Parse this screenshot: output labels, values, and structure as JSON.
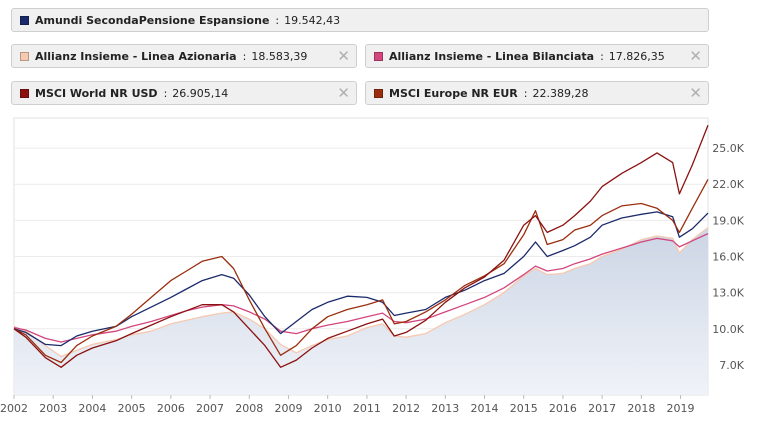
{
  "legend": [
    {
      "name": "Amundi SecondaPensione Espansione",
      "sep": ":",
      "value": "19.542,43",
      "color": "#1b2a6b",
      "removable": false
    },
    {
      "name": "Allianz Insieme - Linea Azionaria",
      "sep": ":",
      "value": "18.583,39",
      "color": "#f6c9b0",
      "removable": true
    },
    {
      "name": "Allianz Insieme - Linea Bilanciata",
      "sep": ":",
      "value": "17.826,35",
      "color": "#d2467e",
      "removable": true
    },
    {
      "name": "MSCI World NR USD",
      "sep": ":",
      "value": "26.905,14",
      "color": "#8b1111",
      "removable": true
    },
    {
      "name": "MSCI Europe NR EUR",
      "sep": ":",
      "value": "22.389,28",
      "color": "#9a2e0e",
      "removable": true
    }
  ],
  "close_glyph": "✕",
  "chart_data": {
    "type": "line",
    "x_ticks": [
      "2002",
      "2003",
      "2004",
      "2005",
      "2006",
      "2007",
      "2008",
      "2009",
      "2010",
      "2011",
      "2012",
      "2013",
      "2014",
      "2015",
      "2016",
      "2017",
      "2018",
      "2019"
    ],
    "y_ticks": [
      "7.0K",
      "10.0K",
      "13.0K",
      "16.0K",
      "19.0K",
      "22.0K",
      "25.0K"
    ],
    "y_tick_values": [
      7000,
      10000,
      13000,
      16000,
      19000,
      22000,
      25000
    ],
    "xlim": [
      2002.0,
      2019.7
    ],
    "ylim": [
      4500,
      27500
    ],
    "series": [
      {
        "name": "Allianz Insieme - Linea Azionaria",
        "color": "#f6c9b0",
        "area": true,
        "x": [
          2002.0,
          2002.3,
          2002.8,
          2003.2,
          2003.6,
          2004.0,
          2004.6,
          2005.0,
          2005.5,
          2006.0,
          2006.4,
          2006.8,
          2007.3,
          2007.6,
          2008.0,
          2008.4,
          2008.8,
          2009.2,
          2009.6,
          2010.0,
          2010.5,
          2011.0,
          2011.4,
          2011.7,
          2012.0,
          2012.5,
          2013.0,
          2013.5,
          2014.0,
          2014.5,
          2015.0,
          2015.3,
          2015.6,
          2016.0,
          2016.3,
          2016.7,
          2017.0,
          2017.5,
          2018.0,
          2018.4,
          2018.8,
          2018.97,
          2019.3,
          2019.7
        ],
        "y": [
          10200,
          9800,
          8600,
          7700,
          8200,
          8700,
          9100,
          9500,
          9800,
          10400,
          10700,
          11000,
          11300,
          11400,
          10800,
          10000,
          8700,
          8000,
          8600,
          9100,
          9400,
          10100,
          10400,
          9400,
          9300,
          9600,
          10500,
          11200,
          12000,
          13000,
          14400,
          15000,
          14500,
          14600,
          15000,
          15400,
          16000,
          16600,
          17400,
          17700,
          17500,
          16300,
          17400,
          18400
        ]
      },
      {
        "name": "Allianz Insieme - Linea Bilanciata",
        "color": "#d2467e",
        "area": false,
        "x": [
          2002.0,
          2002.3,
          2002.8,
          2003.2,
          2003.6,
          2004.0,
          2004.6,
          2005.0,
          2005.5,
          2006.0,
          2006.4,
          2006.8,
          2007.3,
          2007.6,
          2008.0,
          2008.4,
          2008.8,
          2009.2,
          2009.6,
          2010.0,
          2010.5,
          2011.0,
          2011.4,
          2011.7,
          2012.0,
          2012.5,
          2013.0,
          2013.5,
          2014.0,
          2014.5,
          2015.0,
          2015.3,
          2015.6,
          2016.0,
          2016.3,
          2016.7,
          2017.0,
          2017.5,
          2018.0,
          2018.4,
          2018.8,
          2018.97,
          2019.3,
          2019.7
        ],
        "y": [
          10100,
          9900,
          9200,
          8900,
          9200,
          9500,
          9800,
          10200,
          10600,
          11100,
          11500,
          11800,
          12000,
          11900,
          11400,
          10800,
          9800,
          9600,
          10000,
          10300,
          10600,
          11000,
          11300,
          10600,
          10500,
          10800,
          11400,
          12000,
          12600,
          13400,
          14500,
          15200,
          14800,
          15000,
          15400,
          15800,
          16200,
          16700,
          17200,
          17500,
          17300,
          16800,
          17300,
          17900
        ]
      },
      {
        "name": "Amundi SecondaPensione Espansione",
        "color": "#1b2a6b",
        "area": false,
        "x": [
          2002.0,
          2002.3,
          2002.8,
          2003.2,
          2003.6,
          2004.0,
          2004.6,
          2005.0,
          2005.5,
          2006.0,
          2006.4,
          2006.8,
          2007.3,
          2007.6,
          2008.0,
          2008.4,
          2008.8,
          2009.2,
          2009.6,
          2010.0,
          2010.5,
          2011.0,
          2011.4,
          2011.7,
          2012.0,
          2012.5,
          2013.0,
          2013.5,
          2014.0,
          2014.5,
          2015.0,
          2015.3,
          2015.6,
          2016.0,
          2016.3,
          2016.7,
          2017.0,
          2017.5,
          2018.0,
          2018.4,
          2018.8,
          2018.97,
          2019.3,
          2019.7
        ],
        "y": [
          10000,
          9700,
          8700,
          8600,
          9400,
          9800,
          10200,
          11000,
          11800,
          12600,
          13300,
          14000,
          14500,
          14200,
          12800,
          11000,
          9600,
          10600,
          11600,
          12200,
          12700,
          12600,
          12200,
          11100,
          11300,
          11600,
          12600,
          13200,
          14000,
          14600,
          16000,
          17200,
          16000,
          16500,
          16900,
          17600,
          18600,
          19200,
          19500,
          19700,
          19300,
          17600,
          18300,
          19600
        ]
      },
      {
        "name": "MSCI Europe NR EUR",
        "color": "#9a2e0e",
        "area": false,
        "x": [
          2002.0,
          2002.3,
          2002.8,
          2003.2,
          2003.6,
          2004.0,
          2004.6,
          2005.0,
          2005.5,
          2006.0,
          2006.4,
          2006.8,
          2007.3,
          2007.6,
          2008.0,
          2008.4,
          2008.8,
          2009.2,
          2009.6,
          2010.0,
          2010.5,
          2011.0,
          2011.4,
          2011.7,
          2012.0,
          2012.5,
          2013.0,
          2013.5,
          2014.0,
          2014.5,
          2015.0,
          2015.3,
          2015.6,
          2016.0,
          2016.3,
          2016.7,
          2017.0,
          2017.5,
          2018.0,
          2018.4,
          2018.8,
          2018.97,
          2019.3,
          2019.7
        ],
        "y": [
          10000,
          9500,
          7800,
          7200,
          8600,
          9400,
          10200,
          11200,
          12600,
          14000,
          14800,
          15600,
          16000,
          15000,
          12400,
          10000,
          7800,
          8600,
          10000,
          11000,
          11600,
          12000,
          12400,
          10400,
          10600,
          11400,
          12400,
          13600,
          14400,
          15400,
          17800,
          19800,
          17000,
          17400,
          18200,
          18600,
          19400,
          20200,
          20400,
          20000,
          19000,
          18000,
          20000,
          22400
        ]
      },
      {
        "name": "MSCI World NR USD",
        "color": "#8b1111",
        "area": false,
        "x": [
          2002.0,
          2002.3,
          2002.8,
          2003.2,
          2003.6,
          2004.0,
          2004.6,
          2005.0,
          2005.5,
          2006.0,
          2006.4,
          2006.8,
          2007.3,
          2007.6,
          2008.0,
          2008.4,
          2008.8,
          2009.2,
          2009.6,
          2010.0,
          2010.5,
          2011.0,
          2011.4,
          2011.7,
          2012.0,
          2012.5,
          2013.0,
          2013.5,
          2014.0,
          2014.5,
          2015.0,
          2015.3,
          2015.6,
          2016.0,
          2016.3,
          2016.7,
          2017.0,
          2017.5,
          2018.0,
          2018.4,
          2018.8,
          2018.97,
          2019.3,
          2019.7
        ],
        "y": [
          10000,
          9300,
          7600,
          6800,
          7800,
          8400,
          9000,
          9600,
          10300,
          11000,
          11500,
          12000,
          12000,
          11400,
          10000,
          8600,
          6800,
          7400,
          8400,
          9200,
          9800,
          10400,
          10800,
          9400,
          9700,
          10700,
          12200,
          13400,
          14300,
          15700,
          18600,
          19400,
          18000,
          18600,
          19400,
          20600,
          21800,
          22900,
          23800,
          24600,
          23800,
          21200,
          23600,
          26900
        ]
      }
    ]
  }
}
